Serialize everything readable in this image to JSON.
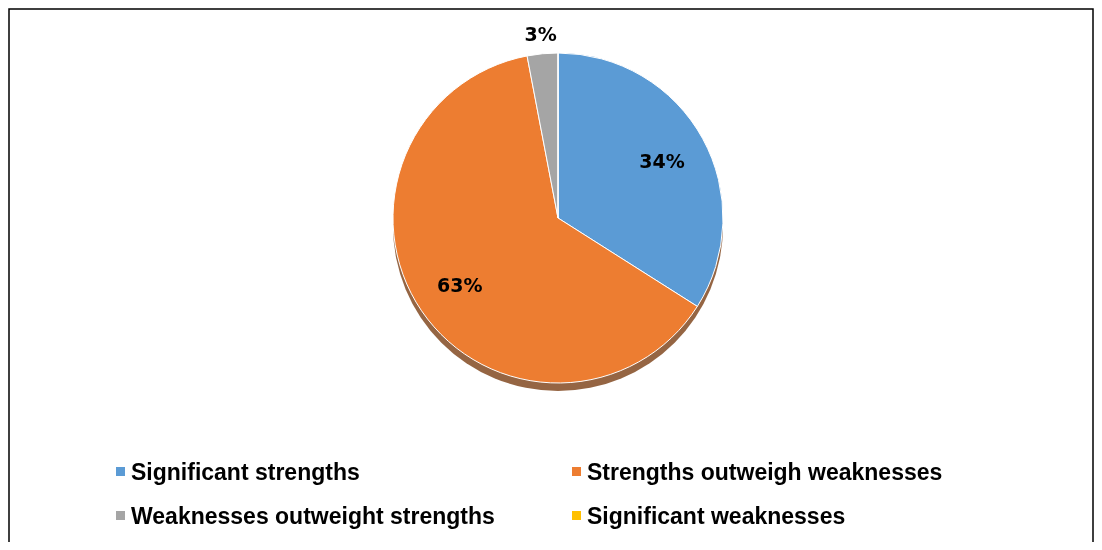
{
  "chart_data": {
    "type": "pie",
    "categories": [
      "Significant strengths",
      "Strengths outweigh weaknesses",
      "Weaknesses outweight strengths",
      "Significant weaknesses"
    ],
    "values": [
      34,
      63,
      3,
      0
    ],
    "colors": [
      "#5b9bd5",
      "#ed7d31",
      "#a5a5a5",
      "#ffc000"
    ],
    "value_labels": [
      "34%",
      "63%",
      "3%",
      null
    ],
    "legend": "bottom"
  }
}
